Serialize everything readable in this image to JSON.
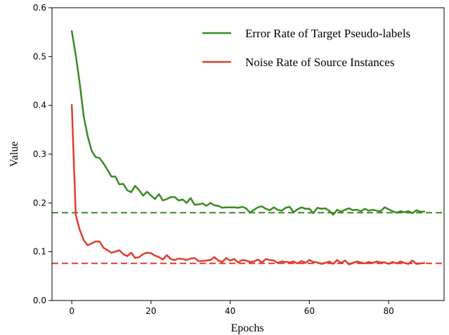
{
  "chart_data": {
    "type": "line",
    "xlabel": "Epochs",
    "ylabel": "Value",
    "xlim": [
      -5,
      94
    ],
    "ylim": [
      0.0,
      0.6
    ],
    "xticks": [
      0,
      20,
      40,
      60,
      80
    ],
    "xtick_labels": [
      "0",
      "20",
      "40",
      "60",
      "80"
    ],
    "yticks": [
      0.0,
      0.1,
      0.2,
      0.3,
      0.4,
      0.5,
      0.6
    ],
    "ytick_labels": [
      "0.0",
      "0.1",
      "0.2",
      "0.3",
      "0.4",
      "0.5",
      "0.6"
    ],
    "legend_position": "upper-right",
    "grid": false,
    "x": [
      0,
      1,
      2,
      3,
      4,
      5,
      6,
      7,
      8,
      9,
      10,
      11,
      12,
      13,
      14,
      15,
      16,
      17,
      18,
      19,
      20,
      21,
      22,
      23,
      24,
      25,
      26,
      27,
      28,
      29,
      30,
      31,
      32,
      33,
      34,
      35,
      36,
      37,
      38,
      39,
      40,
      41,
      42,
      43,
      44,
      45,
      46,
      47,
      48,
      49,
      50,
      51,
      52,
      53,
      54,
      55,
      56,
      57,
      58,
      59,
      60,
      61,
      62,
      63,
      64,
      65,
      66,
      67,
      68,
      69,
      70,
      71,
      72,
      73,
      74,
      75,
      76,
      77,
      78,
      79,
      80,
      81,
      82,
      83,
      84,
      85,
      86,
      87,
      88,
      89
    ],
    "series": [
      {
        "name": "Error Rate of Target Pseudo-labels",
        "color": "#3a8a22",
        "values": [
          0.552,
          0.503,
          0.445,
          0.378,
          0.337,
          0.307,
          0.294,
          0.292,
          0.281,
          0.268,
          0.254,
          0.254,
          0.238,
          0.239,
          0.226,
          0.222,
          0.235,
          0.226,
          0.215,
          0.223,
          0.215,
          0.208,
          0.218,
          0.205,
          0.208,
          0.212,
          0.212,
          0.205,
          0.207,
          0.2,
          0.21,
          0.196,
          0.197,
          0.199,
          0.194,
          0.2,
          0.195,
          0.194,
          0.19,
          0.191,
          0.191,
          0.191,
          0.19,
          0.192,
          0.189,
          0.18,
          0.186,
          0.191,
          0.193,
          0.188,
          0.185,
          0.191,
          0.186,
          0.184,
          0.19,
          0.192,
          0.181,
          0.187,
          0.191,
          0.188,
          0.188,
          0.179,
          0.19,
          0.188,
          0.189,
          0.184,
          0.176,
          0.186,
          0.182,
          0.186,
          0.189,
          0.185,
          0.186,
          0.183,
          0.188,
          0.184,
          0.186,
          0.184,
          0.183,
          0.191,
          0.187,
          0.183,
          0.18,
          0.183,
          0.181,
          0.183,
          0.179,
          0.185,
          0.182,
          0.182
        ]
      },
      {
        "name": "Noise Rate of Source Instances",
        "color": "#e03c2c",
        "values": [
          0.401,
          0.175,
          0.145,
          0.124,
          0.113,
          0.117,
          0.121,
          0.121,
          0.108,
          0.103,
          0.098,
          0.1,
          0.103,
          0.095,
          0.091,
          0.098,
          0.087,
          0.089,
          0.095,
          0.098,
          0.097,
          0.092,
          0.089,
          0.084,
          0.093,
          0.085,
          0.083,
          0.086,
          0.085,
          0.083,
          0.086,
          0.087,
          0.081,
          0.081,
          0.082,
          0.083,
          0.089,
          0.082,
          0.079,
          0.087,
          0.082,
          0.085,
          0.078,
          0.083,
          0.082,
          0.079,
          0.08,
          0.084,
          0.078,
          0.085,
          0.083,
          0.082,
          0.077,
          0.08,
          0.079,
          0.078,
          0.08,
          0.076,
          0.081,
          0.077,
          0.083,
          0.079,
          0.078,
          0.075,
          0.077,
          0.08,
          0.075,
          0.083,
          0.077,
          0.082,
          0.074,
          0.077,
          0.08,
          0.078,
          0.076,
          0.079,
          0.077,
          0.08,
          0.078,
          0.078,
          0.075,
          0.079,
          0.076,
          0.08,
          0.077,
          0.075,
          0.082,
          0.075,
          0.076,
          0.077
        ]
      }
    ],
    "reference_lines": [
      {
        "y": 0.18,
        "color": "#3a8a22",
        "style": "dashed"
      },
      {
        "y": 0.076,
        "color": "#e03c2c",
        "style": "dashed"
      }
    ]
  }
}
